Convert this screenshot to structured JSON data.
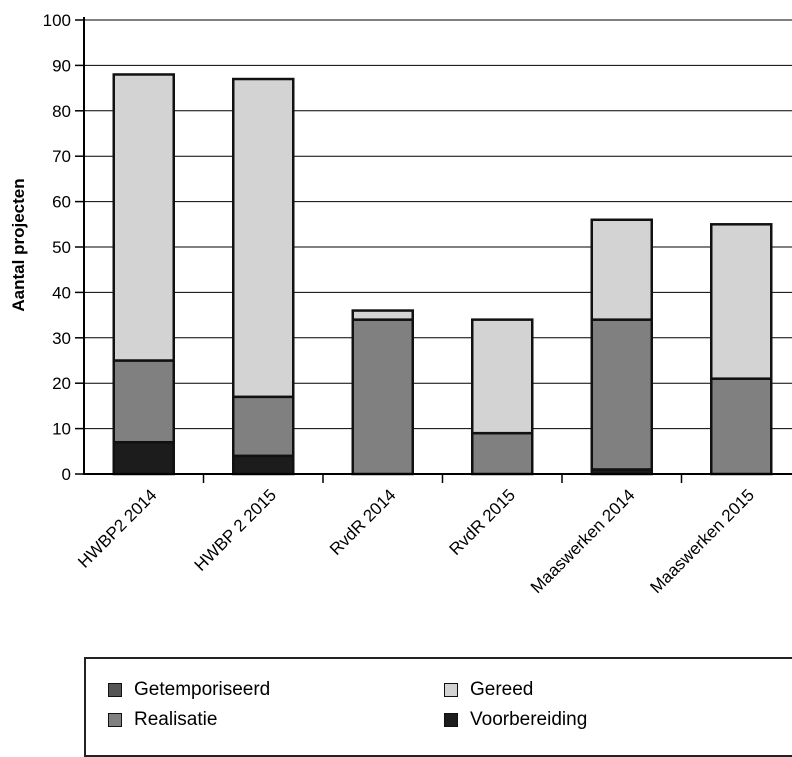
{
  "chart_data": {
    "type": "bar",
    "stacked": true,
    "categories": [
      "HWBP2 2014",
      "HWBP 2 2015",
      "RvdR 2014",
      "RvdR 2015",
      "Maaswerken 2014",
      "Maaswerken 2015"
    ],
    "series": [
      {
        "name": "Voorbereiding",
        "color": "#1c1c1c",
        "values": [
          7,
          4,
          0,
          0,
          1,
          0
        ]
      },
      {
        "name": "Realisatie",
        "color": "#808080",
        "values": [
          18,
          13,
          34,
          9,
          33,
          21
        ]
      },
      {
        "name": "Getemporiseerd",
        "color": "#555555",
        "values": [
          0,
          0,
          0,
          0,
          0,
          0
        ]
      },
      {
        "name": "Gereed",
        "color": "#d3d3d3",
        "values": [
          63,
          70,
          2,
          25,
          22,
          34
        ]
      }
    ],
    "ylabel": "Aantal projecten",
    "ylim": [
      0,
      100
    ],
    "yticks": [
      "0",
      "10",
      "20",
      "30",
      "40",
      "50",
      "60",
      "70",
      "80",
      "90",
      "100"
    ],
    "grid": true,
    "legend": {
      "position": "bottom",
      "items": [
        {
          "name": "Getemporiseerd",
          "color": "#555555"
        },
        {
          "name": "Gereed",
          "color": "#d3d3d3"
        },
        {
          "name": "Realisatie",
          "color": "#808080"
        },
        {
          "name": "Voorbereiding",
          "color": "#1c1c1c"
        }
      ]
    }
  }
}
